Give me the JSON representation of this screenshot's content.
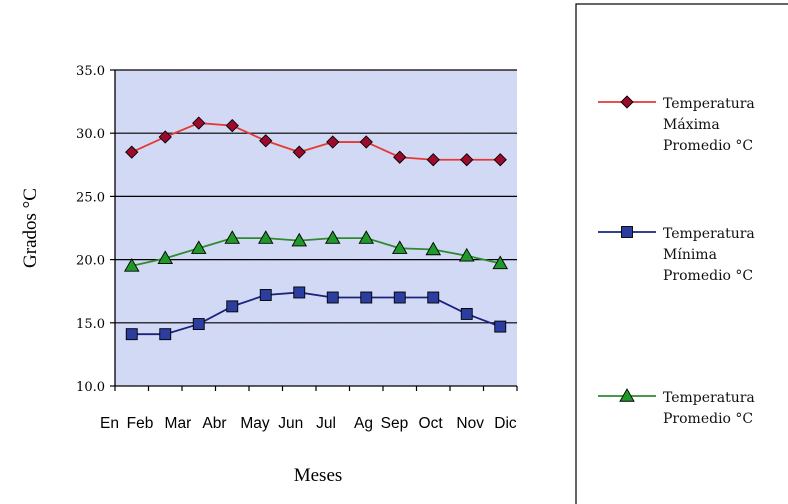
{
  "chart_data": {
    "type": "line",
    "xlabel": "Meses",
    "ylabel": "Grados °C",
    "categories": [
      "En",
      "Feb",
      "Mar",
      "Abr",
      "May",
      "Jun",
      "Jul",
      "Ag",
      "Sep",
      "Oct",
      "Nov",
      "Dic"
    ],
    "ylim": [
      10.0,
      35.0
    ],
    "yticks": [
      "10.0",
      "15.0",
      "20.0",
      "25.0",
      "30.0",
      "35.0"
    ],
    "ytick_values": [
      10,
      15,
      20,
      25,
      30,
      35
    ],
    "grid": true,
    "legend_position": "right",
    "series": [
      {
        "name_lines": [
          "Temperatura",
          "Máxima",
          "Promedio °C"
        ],
        "color": "#e53935",
        "marker": "diamond",
        "marker_color": "#9c0a2e",
        "values": [
          28.5,
          29.7,
          30.8,
          30.6,
          29.4,
          28.5,
          29.3,
          29.3,
          28.1,
          27.9,
          27.9,
          27.9
        ]
      },
      {
        "name_lines": [
          "Temperatura",
          "Mínima",
          "Promedio °C"
        ],
        "color": "#1a237e",
        "marker": "square",
        "marker_color": "#2b3d9e",
        "values": [
          14.1,
          14.1,
          14.9,
          16.3,
          17.2,
          17.4,
          17.0,
          17.0,
          17.0,
          17.0,
          15.7,
          14.7
        ]
      },
      {
        "name_lines": [
          "Temperatura",
          "Promedio °C"
        ],
        "color": "#2e8b2e",
        "marker": "triangle",
        "marker_color": "#1f9a2a",
        "values": [
          19.5,
          20.1,
          20.9,
          21.7,
          21.7,
          21.5,
          21.7,
          21.7,
          20.9,
          20.8,
          20.3,
          19.7
        ]
      }
    ]
  },
  "colors": {
    "plot_background": "#cfdcf4",
    "gridline": "#000000",
    "legend_border": "#000000"
  }
}
